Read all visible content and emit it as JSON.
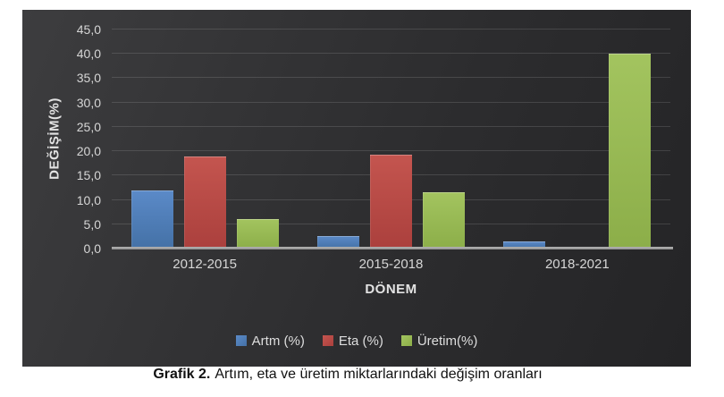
{
  "chart_data": {
    "type": "bar",
    "title": "",
    "categories": [
      "2012-2015",
      "2015-2018",
      "2018-2021"
    ],
    "series": [
      {
        "name": "Artm (%)",
        "values": [
          12.0,
          2.5,
          1.5
        ],
        "color": "#5b8ac8",
        "color_dark": "#4471a6"
      },
      {
        "name": "Eta (%)",
        "values": [
          19.0,
          19.3,
          0.0
        ],
        "color": "#c4554f",
        "color_dark": "#ab403d"
      },
      {
        "name": "Üretim(%)",
        "values": [
          6.0,
          11.5,
          40.0
        ],
        "color": "#a3c45f",
        "color_dark": "#8cae49"
      }
    ],
    "xlabel": "DÖNEM",
    "ylabel": "DEĞİŞİM(%)",
    "ylim": [
      0,
      45
    ],
    "ytick_step": 5,
    "ytick_labels": [
      "0,0",
      "5,0",
      "10,0",
      "15,0",
      "20,0",
      "25,0",
      "30,0",
      "35,0",
      "40,0",
      "45,0"
    ],
    "grid": true,
    "legend_position": "bottom-center",
    "colors": {
      "plot_bg_light": "#3d3d3f",
      "plot_bg_dark": "#242426",
      "grid_line": "#4a4a4c",
      "axis_line": "#a6a6a6",
      "tick_text": "#d6d6d6",
      "axis_title_text": "#e3e3e3"
    }
  },
  "caption": {
    "label": "Grafik 2.",
    "text": "Artım, eta ve üretim miktarlarındaki değişim oranları"
  }
}
